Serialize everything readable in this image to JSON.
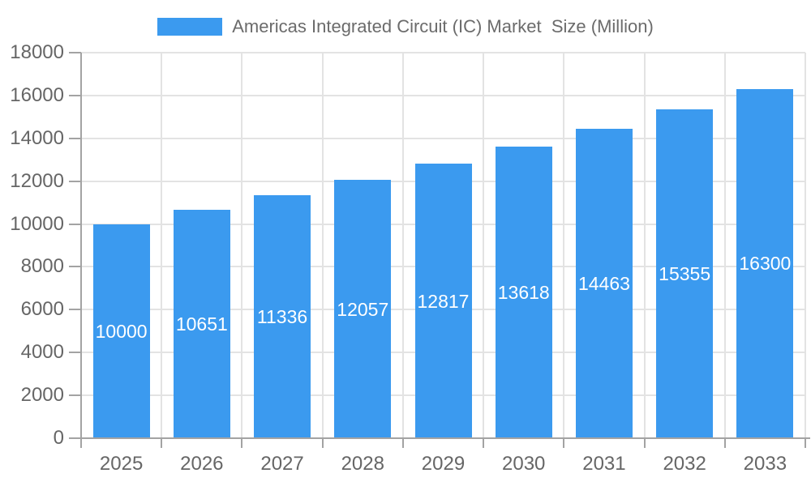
{
  "legend": {
    "label": "Americas Integrated Circuit (IC) Market  Size (Million)"
  },
  "colors": {
    "bar": "#3B9AEF",
    "grid": "#e3e3e3",
    "axis": "#a3a3a3",
    "tick_label": "#666666",
    "legend_text": "#6b6b6b",
    "value_label": "#ffffff",
    "background": "#ffffff"
  },
  "chart_data": {
    "type": "bar",
    "title": "",
    "categories": [
      "2025",
      "2026",
      "2027",
      "2028",
      "2029",
      "2030",
      "2031",
      "2032",
      "2033"
    ],
    "series": [
      {
        "name": "Americas Integrated Circuit (IC) Market  Size (Million)",
        "values": [
          10000,
          10651,
          11336,
          12057,
          12817,
          13618,
          14463,
          15355,
          16300
        ]
      }
    ],
    "xlabel": "",
    "ylabel": "",
    "ylim": [
      0,
      18000
    ],
    "ytick_step": 2000,
    "ytick_labels": [
      "0",
      "2000",
      "4000",
      "6000",
      "8000",
      "10000",
      "12000",
      "14000",
      "16000",
      "18000"
    ],
    "grid": true,
    "legend_position": "top-center",
    "value_labels": "inside-center"
  }
}
